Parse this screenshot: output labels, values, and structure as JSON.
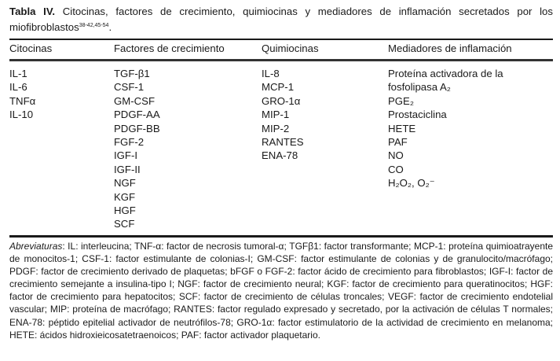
{
  "title": {
    "label": "Tabla IV.",
    "text": "Citocinas, factores de crecimiento, quimiocinas y mediadores de inflamación secretados por los miofibroblastos",
    "refs": "38-42,45-54",
    "end": "."
  },
  "table": {
    "headers": [
      "Citocinas",
      "Factores de crecimiento",
      "Quimiocinas",
      "Mediadores de inflamación"
    ],
    "columns": [
      [
        "IL-1",
        "IL-6",
        "TNFα",
        "IL-10"
      ],
      [
        "TGF-β1",
        "CSF-1",
        "GM-CSF",
        "PDGF-AA",
        "PDGF-BB",
        "FGF-2",
        "IGF-I",
        "IGF-II",
        "NGF",
        "KGF",
        "HGF",
        "SCF"
      ],
      [
        "IL-8",
        "MCP-1",
        "GRO-1α",
        "MIP-1",
        "MIP-2",
        "RANTES",
        "ENA-78"
      ],
      [
        "Proteína activadora de la",
        "fosfolipasa A₂",
        "PGE₂",
        "Prostaciclina",
        "HETE",
        "PAF",
        "NO",
        "CO",
        "H₂O₂, O₂⁻"
      ]
    ]
  },
  "footnote": {
    "label": "Abreviaturas",
    "text": ": IL: interleucina; TNF-α: factor de necrosis tumoral-α; TGFβ1: factor transformante; MCP-1: proteína quimioatrayente de monocitos-1; CSF-1: factor estimulante de colonias-I; GM-CSF: factor estimulante de colonias y de granulocito/macrófago; PDGF: factor de crecimiento derivado de plaquetas; bFGF o FGF-2: factor ácido de crecimiento para fibroblastos; IGF-I: factor de crecimiento semejante a insulina-tipo I; NGF: factor de crecimiento neural; KGF: factor de crecimiento para queratinocitos; HGF: factor de crecimiento para hepatocitos; SCF: factor de crecimiento de células troncales; VEGF: factor de crecimiento endotelial vascular; MIP: proteína de macrófago; RANTES: factor regulado expresado y secretado, por la activación de células T normales; ENA-78: péptido epitelial activador de neutrófilos-78; GRO-1α: factor estimulatorio de la actividad de crecimiento en melanoma; HETE: ácidos hidroxieicosatetraenoicos; PAF: factor activador plaquetario."
  }
}
